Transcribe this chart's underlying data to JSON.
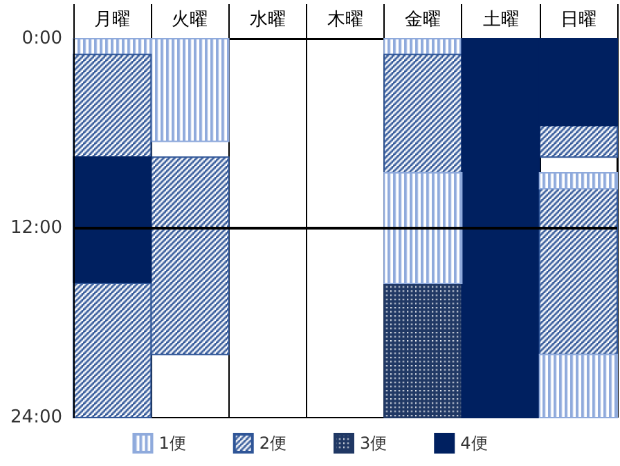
{
  "chart_data": {
    "type": "bar",
    "categories": [
      "月曜",
      "火曜",
      "水曜",
      "木曜",
      "金曜",
      "土曜",
      "日曜"
    ],
    "series": [
      {
        "name": "1便",
        "color": "#8faadc",
        "base": [
          0,
          0,
          null,
          null,
          0,
          null,
          null
        ],
        "values": [
          1,
          6.5,
          null,
          null,
          1,
          null,
          null
        ]
      },
      {
        "name": "2便",
        "color": "#2f5597",
        "base": [
          1,
          7.5,
          null,
          null,
          1,
          null,
          5.5
        ],
        "values": [
          6.5,
          12.5,
          null,
          null,
          7.5,
          null,
          2
        ]
      },
      {
        "name": "3便",
        "color": "#203864",
        "base": [
          null,
          null,
          null,
          null,
          15.5,
          null,
          null
        ],
        "values": [
          null,
          null,
          null,
          null,
          8.5,
          null,
          null
        ]
      },
      {
        "name": "4便",
        "color": "#002060",
        "base": [
          7.5,
          null,
          null,
          null,
          null,
          0,
          0
        ],
        "values": [
          8,
          null,
          null,
          null,
          null,
          24,
          5.5
        ]
      },
      {
        "color": "#2f5597",
        "base": [
          15.5,
          null,
          null,
          null,
          null,
          null,
          9.5
        ],
        "values": [
          8.5,
          null,
          null,
          null,
          null,
          null,
          10.5
        ]
      },
      {
        "color": "#8faadc",
        "base": [
          null,
          null,
          null,
          null,
          8.5,
          null,
          8.5
        ],
        "values": [
          null,
          null,
          null,
          null,
          7,
          null,
          1
        ]
      },
      {
        "color": "#8faadc",
        "base": [
          null,
          null,
          null,
          null,
          null,
          null,
          20
        ],
        "values": [
          null,
          null,
          null,
          null,
          null,
          null,
          4
        ]
      }
    ],
    "ylim": [
      24,
      0
    ],
    "yticks": [
      {
        "value": 0,
        "label": "0:00"
      },
      {
        "value": 12,
        "label": "12:00"
      },
      {
        "value": 24,
        "label": "24:00"
      }
    ],
    "ref_lines": [
      {
        "axis": "y",
        "value": 12,
        "color": "#000000"
      }
    ],
    "grid": "x",
    "legend": "bottom"
  }
}
